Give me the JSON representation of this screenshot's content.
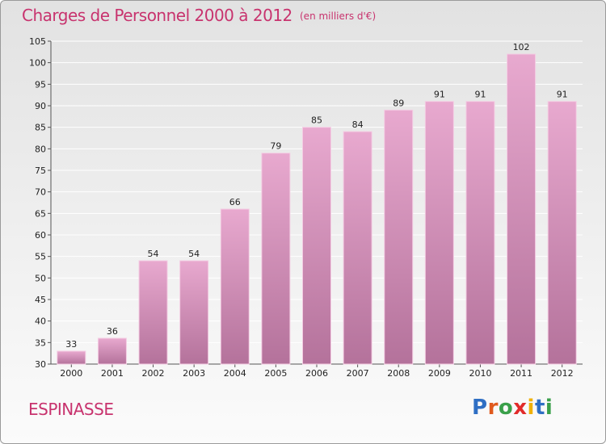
{
  "header": {
    "title": "Charges de Personnel 2000 à 2012",
    "subtitle": "(en milliers d'€)"
  },
  "footer": {
    "commune": "ESPINASSE",
    "logo": {
      "text": "Proxiti",
      "letter_colors": [
        "#2f6fc4",
        "#e05a1e",
        "#3aa04a",
        "#e12b2b",
        "#f0b10a",
        "#2f6fc4",
        "#3aa04a"
      ]
    }
  },
  "colors": {
    "title": "#c8336e",
    "bar_top": "#e8a9cf",
    "bar_bottom": "#b4729b",
    "bar_edge": "#f4cde3"
  },
  "chart_data": {
    "type": "bar",
    "title": "Charges de Personnel 2000 à 2012",
    "subtitle": "(en milliers d'€)",
    "categories": [
      "2000",
      "2001",
      "2002",
      "2003",
      "2004",
      "2005",
      "2006",
      "2007",
      "2008",
      "2009",
      "2010",
      "2011",
      "2012"
    ],
    "values": [
      33,
      36,
      54,
      54,
      66,
      79,
      85,
      84,
      89,
      91,
      91,
      102,
      91
    ],
    "ylim": [
      30,
      105
    ],
    "yticks": [
      30,
      35,
      40,
      45,
      50,
      55,
      60,
      65,
      70,
      75,
      80,
      85,
      90,
      95,
      100,
      105
    ],
    "grid": true,
    "legend": "none",
    "data_labels": true
  }
}
